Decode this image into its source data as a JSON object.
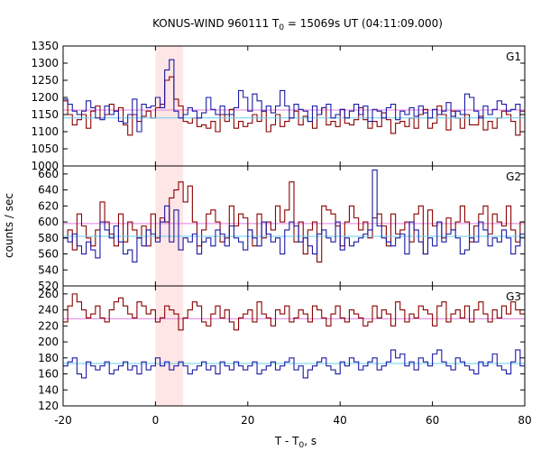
{
  "chart_data": {
    "type": "line",
    "title": "KONUS-WIND 960111 T",
    "title_sub": "0",
    "title_rest": " = 15069s UT (04:11:09.000)",
    "xlabel": "T - T",
    "xlabel_sub": "0",
    "xlabel_rest": ", s",
    "ylabel": "counts / sec",
    "xlim": [
      -20,
      80
    ],
    "xticks": [
      -20,
      0,
      20,
      40,
      60,
      80
    ],
    "highlight": {
      "x0": 0,
      "x1": 6,
      "color": "#ffe6e6"
    },
    "colors": {
      "red": "#8b0000",
      "blue": "#1a1aa6",
      "cyan": "#66ccee",
      "pink": "#e080e0"
    },
    "panels": [
      {
        "name": "G1",
        "ylim": [
          1000,
          1350
        ],
        "yticks": [
          1000,
          1050,
          1100,
          1150,
          1200,
          1250,
          1300,
          1350
        ],
        "red": {
          "bg": 1163,
          "values": [
            1190,
            1150,
            1120,
            1135,
            1150,
            1110,
            1160,
            1175,
            1140,
            1150,
            1180,
            1160,
            1170,
            1120,
            1090,
            1150,
            1130,
            1145,
            1160,
            1140,
            1170,
            1180,
            1250,
            1260,
            1195,
            1175,
            1130,
            1125,
            1140,
            1115,
            1120,
            1110,
            1130,
            1100,
            1150,
            1130,
            1165,
            1110,
            1130,
            1115,
            1125,
            1150,
            1130,
            1160,
            1100,
            1120,
            1150,
            1115,
            1130,
            1140,
            1160,
            1120,
            1145,
            1130,
            1110,
            1150,
            1170,
            1120,
            1130,
            1115,
            1165,
            1125,
            1120,
            1135,
            1170,
            1135,
            1110,
            1130,
            1115,
            1155,
            1135,
            1095,
            1125,
            1130,
            1115,
            1140,
            1110,
            1150,
            1165,
            1110,
            1125,
            1175,
            1150,
            1105,
            1160,
            1140,
            1110,
            1150,
            1120,
            1120,
            1145,
            1105,
            1130,
            1110,
            1140,
            1160,
            1150,
            1130,
            1090,
            1160
          ]
        },
        "blue": {
          "bg": 1140,
          "values": [
            1195,
            1180,
            1160,
            1150,
            1160,
            1190,
            1170,
            1140,
            1135,
            1175,
            1150,
            1160,
            1130,
            1125,
            1150,
            1195,
            1100,
            1180,
            1170,
            1175,
            1200,
            1170,
            1280,
            1310,
            1160,
            1140,
            1150,
            1170,
            1160,
            1140,
            1155,
            1200,
            1165,
            1150,
            1175,
            1150,
            1150,
            1170,
            1220,
            1200,
            1160,
            1210,
            1190,
            1160,
            1175,
            1155,
            1175,
            1220,
            1175,
            1140,
            1180,
            1165,
            1160,
            1130,
            1175,
            1150,
            1170,
            1180,
            1140,
            1150,
            1165,
            1140,
            1160,
            1180,
            1150,
            1175,
            1130,
            1165,
            1160,
            1140,
            1170,
            1180,
            1135,
            1160,
            1150,
            1170,
            1145,
            1175,
            1155,
            1140,
            1165,
            1150,
            1160,
            1185,
            1145,
            1160,
            1150,
            1210,
            1200,
            1160,
            1140,
            1175,
            1150,
            1165,
            1190,
            1180,
            1160,
            1165,
            1180,
            1150
          ]
        }
      },
      {
        "name": "G2",
        "ylim": [
          520,
          670
        ],
        "yticks": [
          520,
          540,
          560,
          580,
          600,
          620,
          640,
          660
        ],
        "red": {
          "bg": 598,
          "values": [
            580,
            590,
            565,
            610,
            595,
            580,
            570,
            590,
            625,
            600,
            585,
            570,
            610,
            575,
            600,
            590,
            580,
            595,
            570,
            610,
            580,
            605,
            600,
            630,
            640,
            650,
            625,
            645,
            600,
            570,
            590,
            610,
            615,
            600,
            575,
            580,
            620,
            595,
            610,
            605,
            590,
            570,
            610,
            580,
            600,
            590,
            620,
            600,
            615,
            650,
            575,
            600,
            560,
            590,
            600,
            550,
            620,
            615,
            610,
            595,
            570,
            600,
            620,
            605,
            590,
            600,
            580,
            605,
            610,
            595,
            570,
            610,
            585,
            590,
            600,
            575,
            610,
            620,
            560,
            615,
            595,
            600,
            580,
            605,
            590,
            600,
            620,
            600,
            575,
            595,
            610,
            620,
            585,
            610,
            600,
            595,
            620,
            590,
            575,
            600
          ]
        },
        "blue": {
          "bg": 582,
          "values": [
            580,
            575,
            585,
            570,
            560,
            575,
            565,
            555,
            600,
            590,
            580,
            595,
            575,
            560,
            565,
            550,
            580,
            570,
            590,
            585,
            575,
            600,
            620,
            575,
            615,
            565,
            580,
            575,
            585,
            560,
            575,
            580,
            570,
            590,
            585,
            570,
            595,
            580,
            575,
            565,
            590,
            580,
            570,
            600,
            585,
            575,
            580,
            560,
            590,
            600,
            595,
            575,
            580,
            570,
            560,
            585,
            590,
            580,
            575,
            600,
            565,
            580,
            570,
            575,
            580,
            585,
            590,
            665,
            595,
            580,
            575,
            570,
            580,
            585,
            560,
            600,
            590,
            575,
            560,
            580,
            570,
            600,
            575,
            585,
            590,
            580,
            560,
            565,
            580,
            575,
            600,
            590,
            570,
            580,
            575,
            590,
            580,
            560,
            570,
            585
          ]
        }
      },
      {
        "name": "G3",
        "ylim": [
          120,
          270
        ],
        "yticks": [
          120,
          140,
          160,
          180,
          200,
          220,
          240,
          260
        ],
        "red": {
          "bg": 229,
          "values": [
            225,
            245,
            260,
            250,
            240,
            230,
            235,
            245,
            230,
            225,
            240,
            250,
            255,
            245,
            235,
            230,
            250,
            245,
            235,
            240,
            225,
            230,
            245,
            240,
            235,
            215,
            230,
            240,
            250,
            245,
            225,
            220,
            235,
            245,
            230,
            240,
            225,
            215,
            230,
            235,
            240,
            225,
            250,
            235,
            230,
            220,
            240,
            235,
            245,
            225,
            230,
            240,
            235,
            225,
            245,
            240,
            230,
            220,
            235,
            245,
            230,
            225,
            240,
            235,
            230,
            220,
            225,
            245,
            230,
            240,
            235,
            220,
            250,
            240,
            225,
            235,
            230,
            245,
            240,
            235,
            220,
            245,
            250,
            225,
            235,
            240,
            230,
            245,
            225,
            240,
            250,
            235,
            225,
            240,
            230,
            245,
            235,
            250,
            240,
            235
          ]
        },
        "blue": {
          "bg": 173,
          "values": [
            170,
            175,
            180,
            160,
            155,
            175,
            170,
            165,
            170,
            175,
            160,
            165,
            170,
            175,
            165,
            170,
            160,
            175,
            165,
            170,
            180,
            170,
            175,
            165,
            170,
            175,
            170,
            160,
            165,
            170,
            175,
            165,
            170,
            160,
            175,
            170,
            165,
            175,
            170,
            165,
            170,
            175,
            160,
            165,
            170,
            175,
            165,
            170,
            175,
            180,
            165,
            170,
            155,
            165,
            170,
            175,
            180,
            170,
            165,
            160,
            175,
            170,
            180,
            175,
            165,
            170,
            175,
            180,
            165,
            170,
            175,
            190,
            180,
            185,
            170,
            175,
            165,
            180,
            175,
            170,
            185,
            190,
            175,
            170,
            165,
            180,
            175,
            170,
            165,
            160,
            175,
            170,
            175,
            185,
            170,
            165,
            160,
            175,
            190,
            170
          ]
        }
      }
    ]
  }
}
